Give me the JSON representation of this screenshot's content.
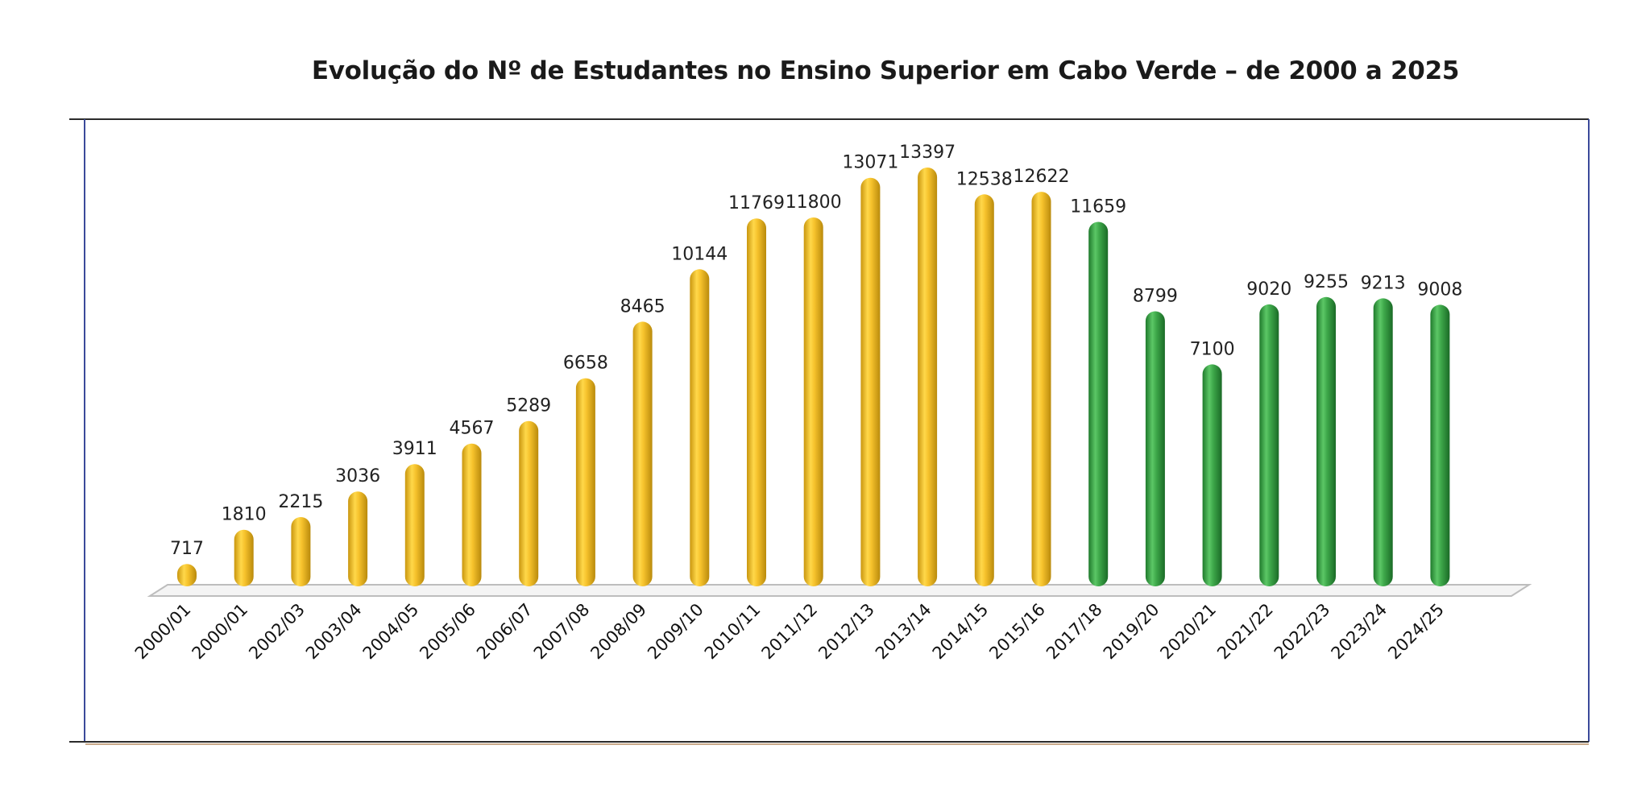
{
  "chart_data": {
    "type": "bar",
    "title": "Evolução do Nº de Estudantes no Ensino Superior em Cabo Verde – de 2000 a 2025",
    "xlabel": "",
    "ylabel": "",
    "categories": [
      "2000/01",
      "2000/01",
      "2002/03",
      "2003/04",
      "2004/05",
      "2005/06",
      "2006/07",
      "2007/08",
      "2008/09",
      "2009/10",
      "2010/11",
      "2011/12",
      "2012/13",
      "2013/14",
      "2014/15",
      "2015/16",
      "2017/18",
      "2019/20",
      "2020/21",
      "2021/22",
      "2022/23",
      "2023/24",
      "2024/25"
    ],
    "values": [
      717,
      1810,
      2215,
      3036,
      3911,
      4567,
      5289,
      6658,
      8465,
      10144,
      11769,
      11800,
      13071,
      13397,
      12538,
      12622,
      11659,
      8799,
      7100,
      9020,
      9255,
      9213,
      9008
    ],
    "bar_colors": [
      "#f2c12e",
      "#f2c12e",
      "#f2c12e",
      "#f2c12e",
      "#f2c12e",
      "#f2c12e",
      "#f2c12e",
      "#f2c12e",
      "#f2c12e",
      "#f2c12e",
      "#f2c12e",
      "#f2c12e",
      "#f2c12e",
      "#f2c12e",
      "#f2c12e",
      "#f2c12e",
      "#3ea84a",
      "#3ea84a",
      "#3ea84a",
      "#3ea84a",
      "#3ea84a",
      "#3ea84a",
      "#3ea84a"
    ],
    "label_colors": [
      "#222222",
      "#222222",
      "#222222",
      "#222222",
      "#222222",
      "#222222",
      "#222222",
      "#222222",
      "#222222",
      "#222222",
      "#222222",
      "#222222",
      "#222222",
      "#222222",
      "#222222",
      "#222222",
      "#222222",
      "#222222",
      "#c0392b",
      "#222222",
      "#222222",
      "#222222",
      "#222222"
    ],
    "ylim": [
      0,
      15000
    ],
    "grid": false,
    "legend": "none"
  }
}
